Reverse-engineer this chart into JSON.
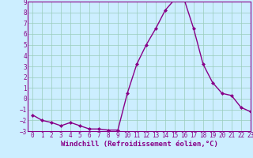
{
  "x": [
    0,
    1,
    2,
    3,
    4,
    5,
    6,
    7,
    8,
    9,
    10,
    11,
    12,
    13,
    14,
    15,
    16,
    17,
    18,
    19,
    20,
    21,
    22,
    23
  ],
  "y": [
    -1.5,
    -2.0,
    -2.2,
    -2.5,
    -2.2,
    -2.5,
    -2.8,
    -2.8,
    -2.9,
    -2.9,
    0.5,
    3.2,
    5.0,
    6.5,
    8.2,
    9.2,
    9.2,
    6.5,
    3.2,
    1.5,
    0.5,
    0.3,
    -0.8,
    -1.2
  ],
  "ylim": [
    -3,
    9
  ],
  "xlim": [
    -0.5,
    23
  ],
  "yticks": [
    -3,
    -2,
    -1,
    0,
    1,
    2,
    3,
    4,
    5,
    6,
    7,
    8,
    9
  ],
  "xticks": [
    0,
    1,
    2,
    3,
    4,
    5,
    6,
    7,
    8,
    9,
    10,
    11,
    12,
    13,
    14,
    15,
    16,
    17,
    18,
    19,
    20,
    21,
    22,
    23
  ],
  "line_color": "#880088",
  "marker": "D",
  "marker_size": 2.0,
  "line_width": 1.0,
  "background_color": "#cceeff",
  "grid_color": "#99ccbb",
  "xlabel": "Windchill (Refroidissement éolien,°C)",
  "xlabel_fontsize": 6.5,
  "tick_fontsize": 5.5,
  "title": ""
}
